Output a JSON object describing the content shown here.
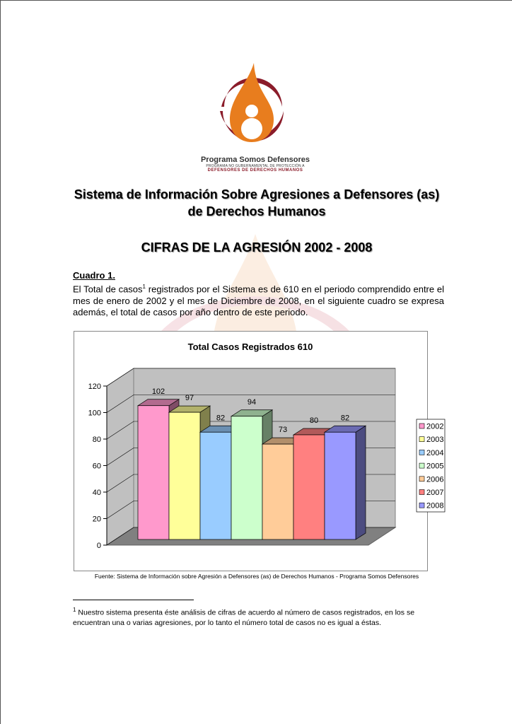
{
  "logo": {
    "name": "Programa Somos Defensores",
    "subtitle": "PROGRAMA NO GUBERNAMENTAL DE PROTECCIÓN A",
    "tagline": "DEFENSORES DE DERECHOS HUMANOS",
    "colors": {
      "orange": "#e87d1e",
      "red": "#8b1c2a"
    }
  },
  "header": {
    "title_line1": "Sistema de Información Sobre Agresiones a  Defensores (as)",
    "title_line2": "de Derechos Humanos",
    "subtitle": "CIFRAS DE LA AGRESIÓN 2002 - 2008"
  },
  "section": {
    "heading": "Cuadro 1.",
    "para_a": "El Total de casos",
    "sup": "1",
    "para_b": " registrados por el Sistema es de 610 en el periodo comprendido entre el mes de enero de 2002 y el mes de Diciembre de 2008, en el siguiente cuadro se expresa además, el total de casos por año dentro de este periodo."
  },
  "chart_data": {
    "type": "bar",
    "style": "3d-column",
    "title": "Total Casos Registrados 610",
    "categories": [
      "2002",
      "2003",
      "2004",
      "2005",
      "2006",
      "2007",
      "2008"
    ],
    "values": [
      102,
      97,
      82,
      94,
      73,
      80,
      82
    ],
    "colors": [
      "#ff99cc",
      "#ffff99",
      "#99ccff",
      "#ccffcc",
      "#ffcc99",
      "#ff8080",
      "#9999ff"
    ],
    "ylim": [
      0,
      120
    ],
    "yticks": [
      0,
      20,
      40,
      60,
      80,
      100,
      120
    ],
    "grid": true,
    "legend": "right"
  },
  "source": "Fuente: Sistema de Información sobre Agresión a Defensores (as) de Derechos Humanos - Programa Somos Defensores",
  "footnote": {
    "sup": "1",
    "text": " Nuestro sistema presenta éste análisis de cifras de acuerdo al número de casos registrados, en los se encuentran una o varias agresiones, por lo tanto el número total de casos no es igual a éstas."
  }
}
